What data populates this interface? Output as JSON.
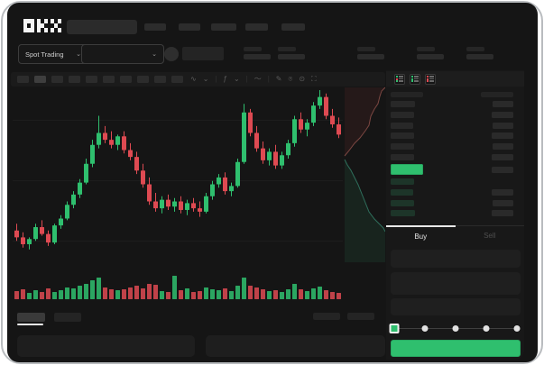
{
  "brand": {
    "logo_text": "OKX"
  },
  "header": {
    "nav_item_count": 5,
    "search_placeholder": ""
  },
  "market_bar": {
    "market_type_label": "Spot Trading",
    "chevron": "⌄"
  },
  "toolbar": {
    "interval_count": 10,
    "active_interval_index": 1,
    "icons": [
      {
        "name": "indicator-wave-icon",
        "glyph": "∿"
      },
      {
        "name": "chevron-down-icon",
        "glyph": "⌄"
      },
      {
        "name": "separator",
        "glyph": "|"
      },
      {
        "name": "function-icon",
        "glyph": "ƒ"
      },
      {
        "name": "chevron-down-icon",
        "glyph": "⌄"
      },
      {
        "name": "separator",
        "glyph": "|"
      },
      {
        "name": "line-tool-icon",
        "glyph": "〜"
      },
      {
        "name": "separator",
        "glyph": "|"
      },
      {
        "name": "draw-pencil-icon",
        "glyph": "✎"
      },
      {
        "name": "camera-icon",
        "glyph": "⌾"
      },
      {
        "name": "settings-icon",
        "glyph": "⊙"
      },
      {
        "name": "fullscreen-icon",
        "glyph": "⛶"
      }
    ]
  },
  "order_book": {
    "toggle_icons": [
      {
        "name": "book-combined-icon",
        "rows": [
          "green",
          "red",
          "green"
        ]
      },
      {
        "name": "book-bids-icon",
        "rows": [
          "green",
          "green",
          "green"
        ]
      },
      {
        "name": "book-asks-icon",
        "rows": [
          "red",
          "red",
          "red"
        ]
      }
    ],
    "asks": [
      {
        "p": 27,
        "a": 23
      },
      {
        "p": 26,
        "a": 24
      },
      {
        "p": 25,
        "a": 23
      },
      {
        "p": 26,
        "a": 24
      },
      {
        "p": 26,
        "a": 23
      },
      {
        "p": 26,
        "a": 24
      }
    ],
    "spread_amount_width": 24,
    "last_price_width": 36,
    "bids": [
      {
        "p": 26,
        "a": 0
      },
      {
        "p": 25,
        "a": 24
      },
      {
        "p": 26,
        "a": 23
      },
      {
        "p": 27,
        "a": 24
      }
    ]
  },
  "order_form": {
    "tabs": [
      {
        "label": "Buy",
        "active": true
      },
      {
        "label": "Sell",
        "active": false
      }
    ],
    "field_heights": [
      20,
      25,
      19
    ],
    "slider_stops": 5,
    "slider_active_stop": 0
  },
  "colors": {
    "up_green": "#2fbf6e",
    "down_red": "#de4a52",
    "accent_button": "#2fbf6e",
    "background": "#151515"
  },
  "chart_data": {
    "type": "candlestick",
    "title": "",
    "price_scale": [
      0,
      100
    ],
    "note": "normalized price units read from unlabeled chart; higher = higher price",
    "candles": [
      [
        18,
        22,
        12,
        14
      ],
      [
        14,
        17,
        8,
        10
      ],
      [
        10,
        14,
        7,
        13
      ],
      [
        13,
        22,
        12,
        20
      ],
      [
        20,
        24,
        15,
        16
      ],
      [
        16,
        18,
        9,
        11
      ],
      [
        11,
        22,
        10,
        21
      ],
      [
        21,
        27,
        19,
        25
      ],
      [
        25,
        35,
        24,
        33
      ],
      [
        33,
        41,
        31,
        39
      ],
      [
        39,
        48,
        37,
        46
      ],
      [
        46,
        60,
        45,
        57
      ],
      [
        57,
        71,
        55,
        68
      ],
      [
        68,
        85,
        66,
        75
      ],
      [
        75,
        79,
        69,
        71
      ],
      [
        71,
        76,
        66,
        68
      ],
      [
        68,
        74,
        65,
        73
      ],
      [
        73,
        76,
        63,
        65
      ],
      [
        65,
        69,
        59,
        61
      ],
      [
        61,
        64,
        51,
        53
      ],
      [
        53,
        57,
        43,
        45
      ],
      [
        45,
        49,
        33,
        35
      ],
      [
        35,
        40,
        29,
        31
      ],
      [
        31,
        38,
        28,
        36
      ],
      [
        36,
        39,
        30,
        32
      ],
      [
        32,
        37,
        29,
        35
      ],
      [
        35,
        38,
        28,
        30
      ],
      [
        30,
        36,
        27,
        34
      ],
      [
        34,
        37,
        29,
        31
      ],
      [
        31,
        35,
        26,
        29
      ],
      [
        29,
        40,
        28,
        38
      ],
      [
        38,
        47,
        36,
        45
      ],
      [
        45,
        51,
        43,
        49
      ],
      [
        49,
        52,
        39,
        41
      ],
      [
        41,
        46,
        38,
        44
      ],
      [
        44,
        60,
        43,
        58
      ],
      [
        58,
        92,
        57,
        87
      ],
      [
        87,
        89,
        73,
        75
      ],
      [
        75,
        79,
        64,
        66
      ],
      [
        66,
        70,
        57,
        59
      ],
      [
        59,
        66,
        56,
        64
      ],
      [
        64,
        68,
        54,
        56
      ],
      [
        56,
        64,
        54,
        62
      ],
      [
        62,
        71,
        60,
        69
      ],
      [
        69,
        85,
        67,
        83
      ],
      [
        83,
        87,
        75,
        77
      ],
      [
        77,
        83,
        73,
        81
      ],
      [
        81,
        93,
        79,
        91
      ],
      [
        91,
        100,
        89,
        96
      ],
      [
        96,
        98,
        83,
        85
      ],
      [
        85,
        89,
        78,
        80
      ],
      [
        80,
        84,
        72,
        74
      ]
    ],
    "volume": [
      9,
      11,
      7,
      10,
      8,
      12,
      8,
      10,
      13,
      12,
      15,
      17,
      21,
      24,
      13,
      11,
      10,
      11,
      13,
      15,
      12,
      17,
      16,
      9,
      8,
      26,
      10,
      12,
      8,
      9,
      13,
      11,
      10,
      12,
      9,
      15,
      24,
      15,
      13,
      11,
      9,
      10,
      8,
      11,
      17,
      11,
      9,
      12,
      14,
      10,
      8,
      7
    ],
    "depth": {
      "asks_line": [
        [
          46,
          2
        ],
        [
          42,
          6
        ],
        [
          40,
          12
        ],
        [
          38,
          20
        ],
        [
          34,
          26
        ],
        [
          30,
          34
        ],
        [
          28,
          44
        ],
        [
          24,
          50
        ],
        [
          18,
          58
        ],
        [
          12,
          64
        ],
        [
          6,
          72
        ],
        [
          1,
          78
        ]
      ],
      "bids_line": [
        [
          1,
          82
        ],
        [
          4,
          88
        ],
        [
          8,
          94
        ],
        [
          12,
          102
        ],
        [
          16,
          110
        ],
        [
          20,
          120
        ],
        [
          24,
          130
        ],
        [
          28,
          140
        ],
        [
          34,
          148
        ],
        [
          40,
          154
        ],
        [
          44,
          158
        ],
        [
          46,
          162
        ]
      ]
    },
    "grid": true,
    "legend": "none"
  }
}
